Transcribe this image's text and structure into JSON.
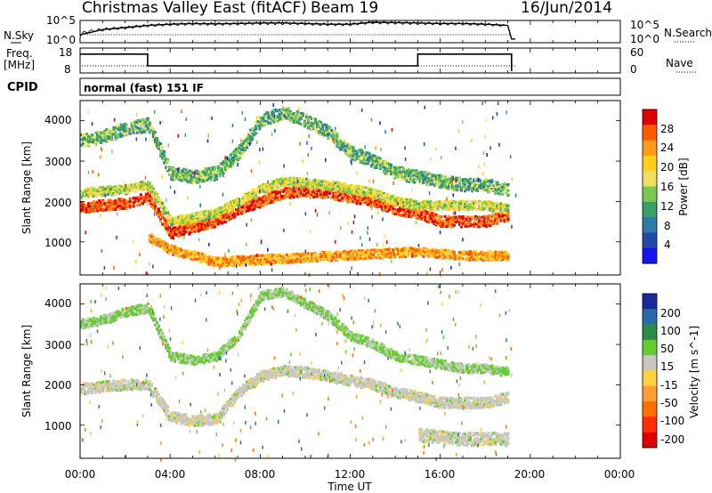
{
  "header": {
    "station": "Christmas Valley East (fitACF)",
    "beam": "Beam 19",
    "date": "16/Jun/2014"
  },
  "noise_panel": {
    "left_label": "N.Sky",
    "left_ticks": [
      "10^5",
      "10^0"
    ],
    "right_ticks": [
      "10^5",
      "10^0"
    ],
    "right_label": "N.Search"
  },
  "freq_panel": {
    "left_label_1": "Freq.",
    "left_label_2": "[MHz]",
    "left_ticks": [
      "18",
      "8"
    ],
    "right_ticks": [
      "60",
      "0"
    ],
    "right_label": "Nave"
  },
  "cpid_panel": {
    "label": "CPID",
    "mode": "normal (fast) 151 IF"
  },
  "power_panel": {
    "ylabel": "Slant Range [km]",
    "yticks": [
      "4000",
      "3000",
      "2000",
      "1000"
    ],
    "colorbar_label": "Power [dB]",
    "colorbar_ticks": [
      "28",
      "24",
      "20",
      "16",
      "12",
      "8",
      "4"
    ],
    "colors": [
      "#e00000",
      "#ff5a00",
      "#ff9a1a",
      "#ffcf1a",
      "#f0e060",
      "#7ac850",
      "#3aa063",
      "#2e7aa8",
      "#1f4aa8",
      "#1414f0"
    ]
  },
  "velocity_panel": {
    "ylabel": "Slant Range [km]",
    "yticks": [
      "4000",
      "3000",
      "2000",
      "1000"
    ],
    "colorbar_label": "Velocity [m s^-1]",
    "colorbar_ticks": [
      "200",
      "100",
      "50",
      "15",
      "-15",
      "-50",
      "-100",
      "-200"
    ],
    "colors": [
      "#1a2a9a",
      "#2a6aa8",
      "#2e8a4a",
      "#66cc33",
      "#c8c8c0",
      "#ffd040",
      "#ffa030",
      "#ff7000",
      "#ff3000",
      "#e00000"
    ]
  },
  "xaxis": {
    "ticks": [
      "00:00",
      "04:00",
      "08:00",
      "12:00",
      "16:00",
      "20:00",
      "00:00"
    ],
    "label": "Time UT"
  },
  "chart_data": [
    {
      "type": "line",
      "panel": "noise",
      "x_range": [
        "00:00",
        "24:00"
      ],
      "ylim": [
        1,
        100000
      ],
      "log": true,
      "series": [
        {
          "x": [
            "00:00",
            "01:00",
            "02:00",
            "03:00",
            "04:00",
            "05:00",
            "06:00",
            "07:00",
            "08:00",
            "09:00",
            "10:00",
            "11:00",
            "12:00",
            "13:00",
            "14:00",
            "15:00",
            "16:00",
            "17:00",
            "18:00",
            "19:00",
            "19:10",
            "19:20"
          ],
          "y": [
            50,
            1000,
            3000,
            10000,
            20000,
            30000,
            25000,
            30000,
            40000,
            40000,
            30000,
            20000,
            20000,
            60000,
            50000,
            40000,
            30000,
            30000,
            20000,
            10000,
            5,
            5
          ]
        }
      ]
    },
    {
      "type": "line",
      "panel": "frequency",
      "x_range": [
        "00:00",
        "24:00"
      ],
      "ylim": [
        8,
        18
      ],
      "y2lim": [
        0,
        60
      ],
      "series": [
        {
          "x": [
            "00:00",
            "03:00",
            "03:00",
            "15:00",
            "15:00",
            "19:10",
            "19:10"
          ],
          "y": [
            16,
            16,
            10.5,
            10.5,
            16,
            16,
            8
          ]
        }
      ]
    },
    {
      "type": "heatmap",
      "panel": "power",
      "x_range": [
        "00:00",
        "19:20"
      ],
      "ylim": [
        180,
        4500
      ],
      "zlim": [
        0,
        30
      ],
      "bands": [
        {
          "x": [
            "00:00",
            "01:00",
            "02:00",
            "03:00",
            "04:00",
            "05:00",
            "06:00",
            "07:00",
            "08:00",
            "09:00",
            "10:00",
            "11:00",
            "12:00",
            "13:00",
            "14:00",
            "15:00",
            "16:00",
            "17:00",
            "18:00",
            "19:00"
          ],
          "y": [
            1850,
            1900,
            1950,
            2100,
            1200,
            1350,
            1500,
            1800,
            2000,
            2200,
            2250,
            2200,
            2100,
            2000,
            1800,
            1700,
            1500,
            1500,
            1500,
            1650
          ],
          "power": 26
        },
        {
          "x": [
            "00:00",
            "01:00",
            "02:00",
            "03:00",
            "04:00",
            "05:00",
            "06:00",
            "07:00",
            "08:00",
            "09:00",
            "10:00",
            "11:00",
            "12:00",
            "13:00",
            "14:00",
            "15:00",
            "16:00",
            "17:00",
            "18:00",
            "19:00"
          ],
          "y": [
            2200,
            2250,
            2300,
            2400,
            1500,
            1600,
            1700,
            2000,
            2300,
            2500,
            2450,
            2400,
            2300,
            2200,
            2000,
            1900,
            1900,
            1900,
            1900,
            1800
          ],
          "power": 16
        },
        {
          "x": [
            "00:00",
            "01:00",
            "02:00",
            "03:00",
            "04:00",
            "05:00",
            "06:00",
            "07:00",
            "08:00",
            "09:00",
            "10:00",
            "11:00",
            "12:00",
            "13:00",
            "14:00",
            "15:00",
            "16:00",
            "17:00",
            "18:00",
            "19:00"
          ],
          "y": [
            3500,
            3600,
            3800,
            3900,
            2700,
            2600,
            2700,
            3200,
            4000,
            4200,
            4000,
            3700,
            3200,
            3000,
            2700,
            2600,
            2500,
            2400,
            2400,
            2300
          ],
          "power": 12
        },
        {
          "x": [
            "03:00",
            "04:00",
            "05:00",
            "06:00",
            "15:00",
            "16:00",
            "17:00",
            "18:00",
            "19:00"
          ],
          "y": [
            1100,
            800,
            650,
            500,
            750,
            700,
            650,
            650,
            650
          ],
          "power": 22
        }
      ]
    },
    {
      "type": "heatmap",
      "panel": "velocity",
      "x_range": [
        "00:00",
        "19:20"
      ],
      "ylim": [
        180,
        4500
      ],
      "zlim": [
        -250,
        250
      ],
      "bands": [
        {
          "x": [
            "00:00",
            "01:00",
            "02:00",
            "03:00",
            "04:00",
            "05:00",
            "06:00",
            "07:00",
            "08:00",
            "09:00",
            "10:00",
            "11:00",
            "12:00",
            "13:00",
            "14:00",
            "15:00",
            "16:00",
            "17:00",
            "18:00",
            "19:00"
          ],
          "y": [
            1900,
            1950,
            2000,
            2000,
            1200,
            1100,
            1150,
            1800,
            2200,
            2350,
            2300,
            2200,
            2100,
            2000,
            1800,
            1700,
            1550,
            1550,
            1550,
            1700
          ],
          "velocity": 0
        },
        {
          "x": [
            "00:00",
            "01:00",
            "02:00",
            "03:00",
            "04:00",
            "05:00",
            "06:00",
            "07:00",
            "08:00",
            "09:00",
            "10:00",
            "11:00",
            "12:00",
            "13:00",
            "14:00",
            "15:00",
            "16:00",
            "17:00",
            "18:00",
            "19:00"
          ],
          "y": [
            3500,
            3600,
            3800,
            3900,
            2700,
            2600,
            2700,
            3200,
            4200,
            4300,
            4000,
            3700,
            3200,
            3000,
            2700,
            2600,
            2500,
            2400,
            2400,
            2300
          ],
          "velocity": 20
        },
        {
          "x": [
            "15:00",
            "16:00",
            "17:00",
            "18:00",
            "19:00"
          ],
          "y": [
            750,
            700,
            650,
            650,
            650
          ],
          "velocity": 0
        }
      ]
    }
  ]
}
